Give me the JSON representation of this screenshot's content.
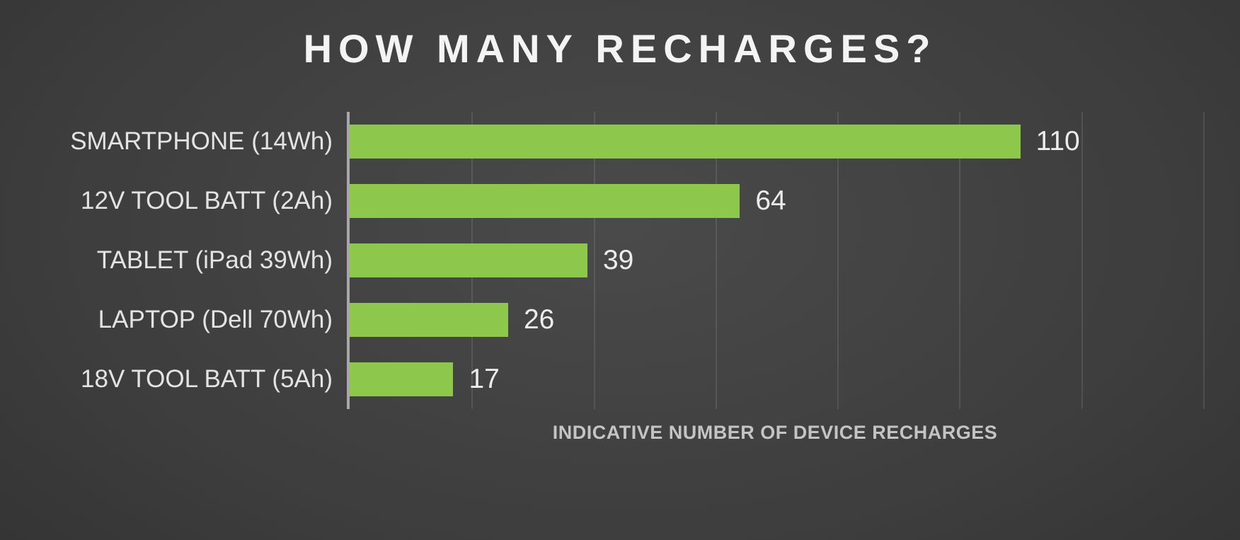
{
  "chart_data": {
    "type": "bar",
    "orientation": "horizontal",
    "title": "HOW MANY RECHARGES?",
    "categories": [
      "SMARTPHONE (14Wh)",
      "12V TOOL BATT (2Ah)",
      "TABLET (iPad 39Wh)",
      "LAPTOP (Dell 70Wh)",
      "18V TOOL BATT (5Ah)"
    ],
    "values": [
      110,
      64,
      39,
      26,
      17
    ],
    "xlabel": "INDICATIVE NUMBER OF DEVICE RECHARGES",
    "ylabel": "",
    "xlim": [
      0,
      140
    ],
    "gridline_step": 20,
    "grid": true,
    "legend": "none",
    "bar_color": "#8dc74b",
    "background_color": "#333333",
    "title_color": "#f4f4f4",
    "category_label_color": "#e3e3e3",
    "value_label_color": "#ececec",
    "axis_label_color": "#c4c4c4",
    "axis_line_color": "#a8a8a8"
  }
}
